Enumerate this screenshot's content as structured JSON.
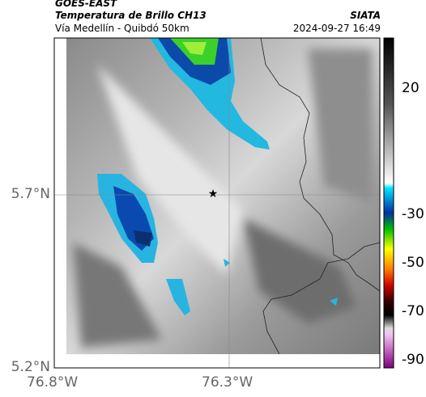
{
  "header": {
    "source": "GOES-EAST",
    "title": "Temperatura de Brillo CH13",
    "subtitle": "Vía Medellín - Quibdó 50km",
    "agency": "SIATA",
    "datetime": "2024-09-27 16:49"
  },
  "map": {
    "lat_labels": [
      "5.7°N",
      "5.2°N"
    ],
    "lon_labels": [
      "76.8°W",
      "76.3°W"
    ]
  },
  "colorbar": {
    "ticks": [
      "20",
      "-30",
      "-50",
      "-70",
      "-90"
    ]
  }
}
